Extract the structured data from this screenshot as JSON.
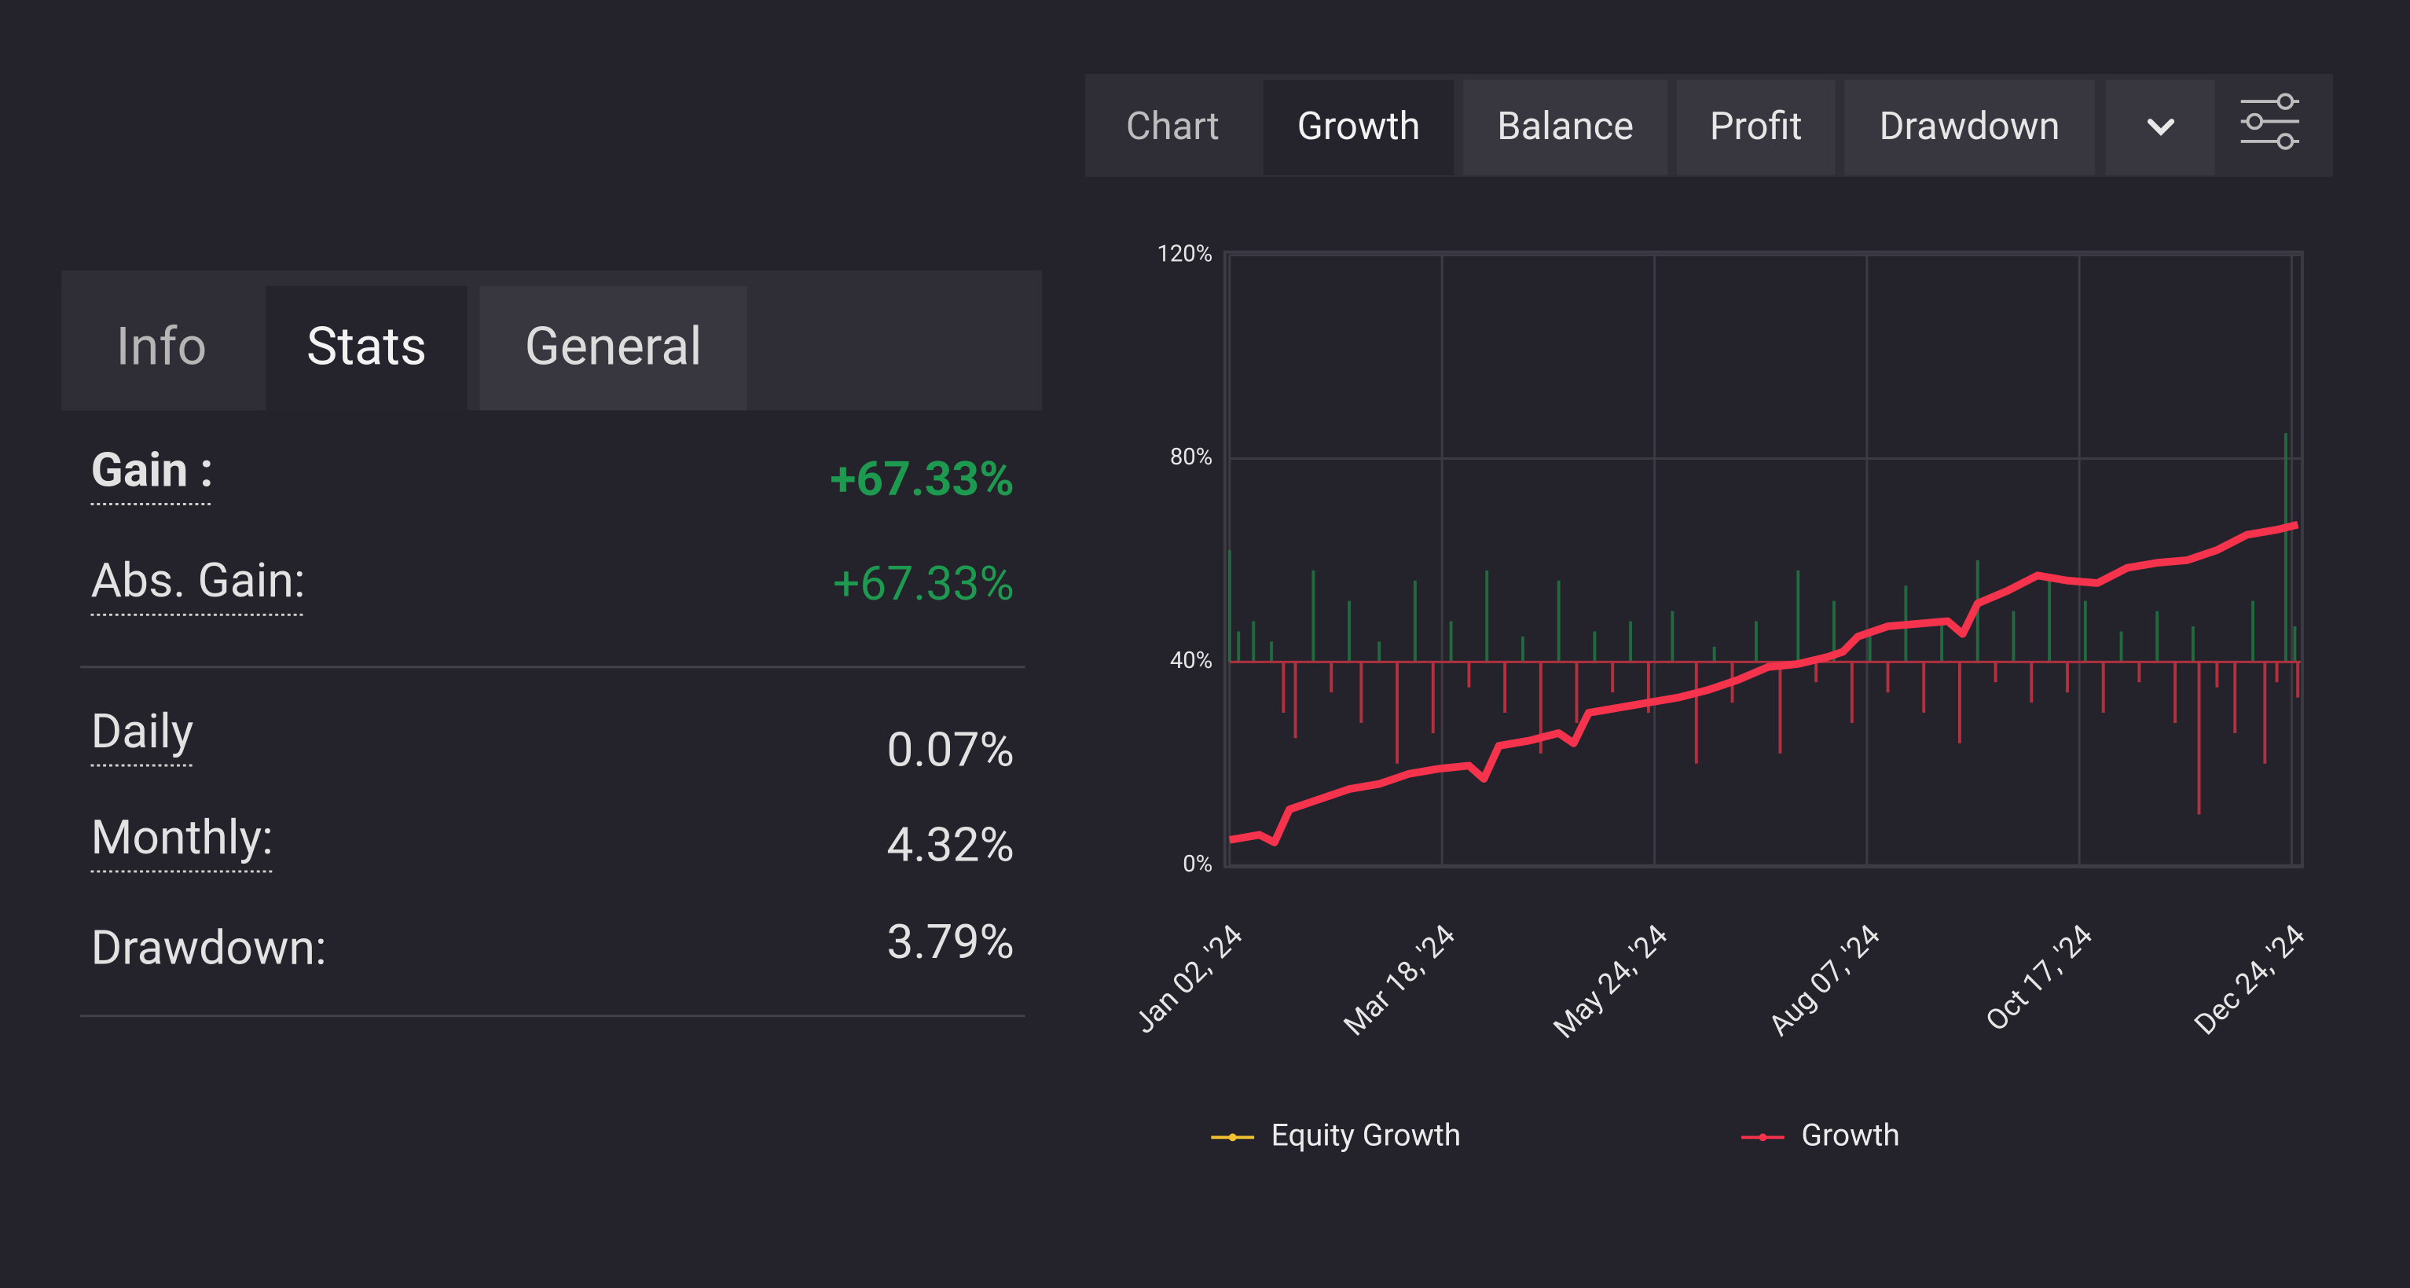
{
  "chart_tabs": [
    "Chart",
    "Growth",
    "Balance",
    "Profit",
    "Drawdown"
  ],
  "info_tabs": [
    "Info",
    "Stats",
    "General"
  ],
  "stats": [
    {
      "label": "Gain :",
      "value": "+67.33%"
    },
    {
      "label": "Abs. Gain:",
      "value": "+67.33%"
    },
    {
      "label": "Daily",
      "value": "0.07%"
    },
    {
      "label": "Monthly:",
      "value": "4.32%"
    },
    {
      "label": "Drawdown:",
      "value": "3.79%"
    }
  ],
  "chart_data": {
    "type": "line",
    "xlim": [
      0,
      358
    ],
    "xticks": [
      {
        "value": 0,
        "label": "Jan 02, '24"
      },
      {
        "value": 71,
        "label": "Mar 18, '24"
      },
      {
        "value": 142,
        "label": "May 24, '24"
      },
      {
        "value": 213,
        "label": "Aug 07, '24"
      },
      {
        "value": 284,
        "label": "Oct 17, '24"
      },
      {
        "value": 355,
        "label": "Dec 24, '24"
      }
    ],
    "ylim": [
      0,
      120
    ],
    "yticks": [
      {
        "value": 0,
        "label": "0%"
      },
      {
        "value": 40,
        "label": "40%"
      },
      {
        "value": 80,
        "label": "80%"
      },
      {
        "value": 120,
        "label": "120%"
      }
    ],
    "grid": true,
    "x": [
      0,
      10,
      15,
      20,
      30,
      40,
      50,
      60,
      70,
      80,
      85,
      90,
      100,
      110,
      115,
      120,
      130,
      140,
      150,
      160,
      170,
      180,
      190,
      200,
      205,
      210,
      220,
      230,
      240,
      245,
      250,
      260,
      270,
      280,
      290,
      300,
      310,
      320,
      330,
      340,
      350,
      357
    ],
    "series": [
      {
        "name": "Equity Growth",
        "color": "#f2c230",
        "values": [
          5,
          6,
          4.5,
          11,
          13,
          15,
          16,
          18,
          19,
          19.6,
          17,
          23.5,
          24.5,
          26,
          24,
          30,
          31,
          32,
          33,
          34.5,
          36.5,
          39,
          39.6,
          41,
          42,
          45,
          47,
          47.5,
          48,
          45.5,
          51.5,
          54,
          57,
          56,
          55.5,
          58.5,
          59.5,
          60,
          62,
          65,
          66,
          67
        ]
      },
      {
        "name": "Growth",
        "color": "#f5334d",
        "values": [
          5,
          6,
          4.5,
          11,
          13,
          15,
          16,
          18,
          19,
          19.6,
          17,
          23.5,
          24.5,
          26,
          24,
          30,
          31,
          32,
          33,
          34.5,
          36.5,
          39,
          39.6,
          41,
          42,
          45,
          47,
          47.5,
          48,
          45.5,
          51.5,
          54,
          57,
          56,
          55.5,
          58.5,
          59.5,
          60,
          62,
          65,
          66,
          67
        ]
      }
    ],
    "bars": {
      "baseline": 40,
      "up_color": "#22693f",
      "down_color": "#b3303f",
      "x": [
        0,
        3,
        8,
        14,
        18,
        22,
        28,
        34,
        40,
        44,
        50,
        56,
        62,
        68,
        74,
        80,
        86,
        92,
        98,
        104,
        110,
        116,
        122,
        128,
        134,
        140,
        148,
        156,
        162,
        168,
        176,
        184,
        190,
        196,
        202,
        208,
        214,
        220,
        226,
        232,
        238,
        244,
        250,
        256,
        262,
        268,
        274,
        280,
        286,
        292,
        298,
        304,
        310,
        316,
        322,
        324,
        330,
        336,
        342,
        346,
        350,
        353,
        356,
        357
      ],
      "values": [
        62,
        46,
        48,
        44,
        30,
        25,
        58,
        34,
        52,
        28,
        44,
        20,
        56,
        26,
        48,
        35,
        58,
        30,
        45,
        22,
        56,
        28,
        46,
        34,
        48,
        30,
        50,
        20,
        43,
        32,
        48,
        22,
        58,
        36,
        52,
        28,
        46,
        34,
        55,
        30,
        48,
        24,
        60,
        36,
        50,
        32,
        56,
        34,
        52,
        30,
        46,
        36,
        50,
        28,
        47,
        10,
        35,
        26,
        52,
        20,
        36,
        85,
        47,
        33
      ]
    }
  }
}
